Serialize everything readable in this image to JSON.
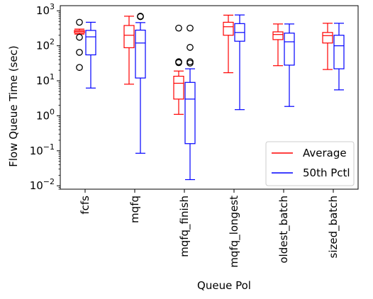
{
  "chart_data": {
    "type": "box",
    "xlabel": "Queue Pol",
    "ylabel": "Flow Queue Time (sec)",
    "yscale": "log",
    "ylim": [
      0.008,
      1400
    ],
    "yticks": [
      {
        "value": 0.01,
        "base": "10",
        "exp": "−2"
      },
      {
        "value": 0.1,
        "base": "10",
        "exp": "−1"
      },
      {
        "value": 1,
        "base": "10",
        "exp": "0"
      },
      {
        "value": 10,
        "base": "10",
        "exp": "1"
      },
      {
        "value": 100,
        "base": "10",
        "exp": "2"
      },
      {
        "value": 1000,
        "base": "10",
        "exp": "3"
      }
    ],
    "categories": [
      "fcfs",
      "mqfq",
      "mqfq_finish",
      "mqfq_longest",
      "oldest_batch",
      "sized_batch"
    ],
    "legend": {
      "position": "lower right"
    },
    "grid": false,
    "series": [
      {
        "name": "Average",
        "color": "#ff0000",
        "boxes": [
          {
            "whislo": 215,
            "q1": 232,
            "med": 255,
            "q3": 275,
            "whishi": 300,
            "fliers": [
              470,
              175,
              65,
              24
            ]
          },
          {
            "whislo": 8,
            "q1": 88,
            "med": 200,
            "q3": 380,
            "whishi": 700,
            "fliers": []
          },
          {
            "whislo": 1.1,
            "q1": 3,
            "med": 8.5,
            "q3": 13.5,
            "whishi": 19,
            "fliers": [
              35,
              33,
              320
            ]
          },
          {
            "whislo": 17,
            "q1": 200,
            "med": 350,
            "q3": 470,
            "whishi": 750,
            "fliers": []
          },
          {
            "whislo": 27,
            "q1": 150,
            "med": 210,
            "q3": 250,
            "whishi": 420,
            "fliers": []
          },
          {
            "whislo": 21,
            "q1": 120,
            "med": 195,
            "q3": 240,
            "whishi": 440,
            "fliers": []
          }
        ]
      },
      {
        "name": "50th Pctl",
        "color": "#0000ff",
        "boxes": [
          {
            "whislo": 6.2,
            "q1": 55,
            "med": 180,
            "q3": 275,
            "whishi": 470,
            "fliers": []
          },
          {
            "whislo": 0.085,
            "q1": 12,
            "med": 120,
            "q3": 280,
            "whishi": 460,
            "fliers": [
              700,
              680
            ]
          },
          {
            "whislo": 0.015,
            "q1": 0.16,
            "med": 3,
            "q3": 9,
            "whishi": 22,
            "fliers": [
              35,
              32,
              90,
              320
            ]
          },
          {
            "whislo": 1.5,
            "q1": 135,
            "med": 240,
            "q3": 430,
            "whishi": 760,
            "fliers": []
          },
          {
            "whislo": 1.85,
            "q1": 28,
            "med": 130,
            "q3": 230,
            "whishi": 420,
            "fliers": []
          },
          {
            "whislo": 5.5,
            "q1": 22,
            "med": 100,
            "q3": 200,
            "whishi": 440,
            "fliers": []
          }
        ]
      }
    ]
  }
}
